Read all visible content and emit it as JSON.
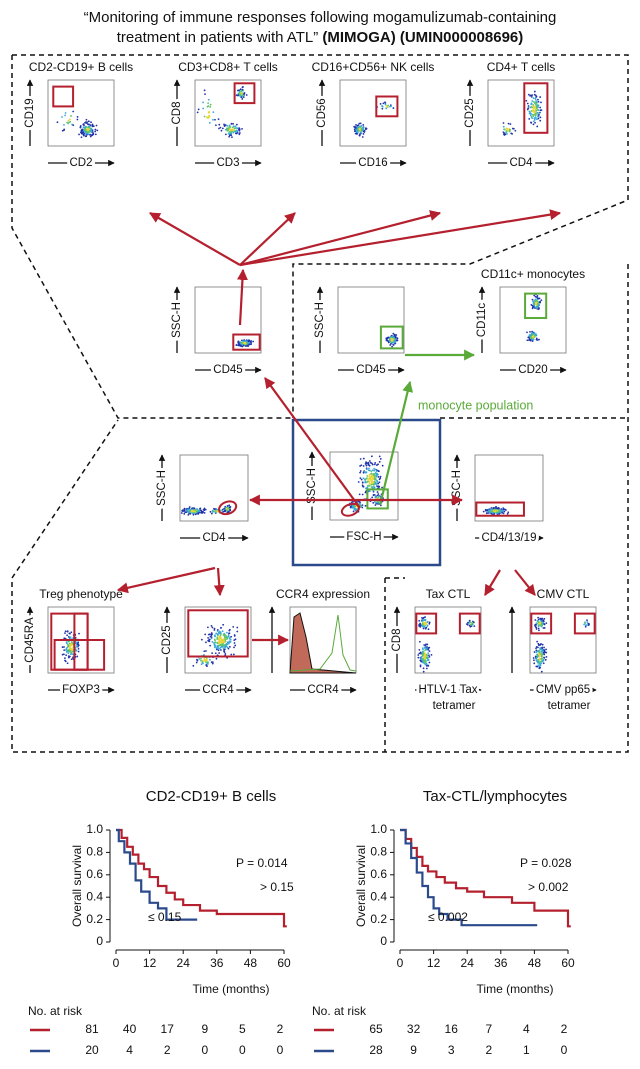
{
  "title": {
    "line1": "“Monitoring of immune responses following mogamulizumab-containing",
    "line2": "treatment in patients with ATL”",
    "line2_bold": "(MIMOGA) (UMIN000008696)"
  },
  "panels": [
    {
      "title": "CD2-CD19+ B cells",
      "x_label": "CD2",
      "y_label": "CD19"
    },
    {
      "title": "CD3+CD8+ T cells",
      "x_label": "CD3",
      "y_label": "CD8"
    },
    {
      "title": "CD16+CD56+ NK cells",
      "x_label": "CD16",
      "y_label": "CD56"
    },
    {
      "title": "CD4+ T cells",
      "x_label": "CD4",
      "y_label": "CD25"
    },
    {
      "x_label": "CD45",
      "y_label": "SSC-H"
    },
    {
      "x_label": "CD45",
      "y_label": "SSC-H"
    },
    {
      "title": "CD11c+ monocytes",
      "x_label": "CD20",
      "y_label": "CD11c"
    },
    {
      "x_label": "CD4",
      "y_label": "SSC-H"
    },
    {
      "x_label": "FSC-H",
      "y_label": "SSC-H"
    },
    {
      "x_label": "CD4/13/19",
      "y_label": "SSC-H"
    },
    {
      "title": "Treg phenotype",
      "x_label": "FOXP3",
      "y_label": "CD45RA"
    },
    {
      "x_label": "CCR4",
      "y_label": "CD25"
    },
    {
      "title": "CCR4 expression",
      "x_label": "CCR4"
    },
    {
      "title": "Tax CTL",
      "x_label": "HTLV-1 Tax",
      "x_label2": "tetramer",
      "y_label": "CD8"
    },
    {
      "title": "CMV CTL",
      "x_label": "CMV pp65",
      "x_label2": "tetramer"
    }
  ],
  "annotations": {
    "monocyte": "monocyte population"
  },
  "chart_data": [
    {
      "type": "line",
      "title": "CD2-CD19+ B cells",
      "x_label": "Time (months)",
      "y_label": "Overall survival",
      "annotation": "P = 0.014",
      "risk_label": "No. at risk",
      "xlim": [
        0,
        62
      ],
      "ylim": [
        0,
        1
      ],
      "xticks": [
        0,
        12,
        24,
        36,
        48,
        60
      ],
      "yticks": [
        0,
        0.2,
        0.4,
        0.6,
        0.8,
        {
          "value": 1,
          "label": "1.0"
        }
      ],
      "series": [
        {
          "name": "> 0.15",
          "color": "#b5202e",
          "x": [
            0,
            2,
            2,
            4,
            4,
            6,
            6,
            8,
            8,
            10,
            10,
            12,
            12,
            15,
            15,
            18,
            18,
            21,
            21,
            24,
            24,
            30,
            30,
            36,
            36,
            60,
            60,
            61
          ],
          "values": [
            1,
            1,
            0.93,
            0.93,
            0.85,
            0.85,
            0.78,
            0.78,
            0.7,
            0.7,
            0.65,
            0.65,
            0.58,
            0.58,
            0.5,
            0.5,
            0.44,
            0.44,
            0.38,
            0.38,
            0.33,
            0.33,
            0.28,
            0.28,
            0.25,
            0.25,
            0.14,
            0.14
          ],
          "at_risk": [
            81,
            40,
            17,
            9,
            5,
            2
          ]
        },
        {
          "name": "≤ 0.15",
          "color": "#2b4a8c",
          "x": [
            0,
            1,
            1,
            3,
            3,
            5,
            5,
            7,
            7,
            9,
            9,
            12,
            12,
            15,
            15,
            18,
            18,
            29
          ],
          "values": [
            1,
            1,
            0.9,
            0.9,
            0.8,
            0.8,
            0.7,
            0.7,
            0.55,
            0.55,
            0.45,
            0.45,
            0.35,
            0.35,
            0.3,
            0.3,
            0.2,
            0.2
          ],
          "at_risk": [
            20,
            4,
            2,
            0,
            0,
            0
          ]
        }
      ]
    },
    {
      "type": "line",
      "title": "Tax-CTL/lymphocytes",
      "x_label": "Time (months)",
      "y_label": "Overall survival",
      "annotation": "P = 0.028",
      "risk_label": "No. at risk",
      "xlim": [
        0,
        62
      ],
      "ylim": [
        0,
        1
      ],
      "xticks": [
        0,
        12,
        24,
        36,
        48,
        60
      ],
      "yticks": [
        0,
        0.2,
        0.4,
        0.6,
        0.8,
        {
          "value": 1,
          "label": "1.0"
        }
      ],
      "series": [
        {
          "name": "> 0.002",
          "color": "#b5202e",
          "x": [
            0,
            2,
            2,
            4,
            4,
            6,
            6,
            8,
            8,
            10,
            10,
            13,
            13,
            16,
            16,
            20,
            20,
            24,
            24,
            30,
            30,
            40,
            40,
            48,
            48,
            60,
            60,
            61
          ],
          "values": [
            1,
            1,
            0.92,
            0.92,
            0.84,
            0.84,
            0.76,
            0.76,
            0.68,
            0.68,
            0.63,
            0.63,
            0.58,
            0.58,
            0.53,
            0.53,
            0.48,
            0.48,
            0.45,
            0.45,
            0.4,
            0.4,
            0.35,
            0.35,
            0.28,
            0.28,
            0.14,
            0.14
          ],
          "at_risk": [
            65,
            32,
            16,
            7,
            4,
            2
          ]
        },
        {
          "name": "≤ 0.002",
          "color": "#2b4a8c",
          "x": [
            0,
            2,
            2,
            4,
            4,
            6,
            6,
            8,
            8,
            10,
            10,
            12,
            12,
            14,
            14,
            17,
            17,
            22,
            22,
            49
          ],
          "values": [
            1,
            1,
            0.88,
            0.88,
            0.75,
            0.75,
            0.62,
            0.62,
            0.5,
            0.5,
            0.4,
            0.4,
            0.3,
            0.3,
            0.25,
            0.25,
            0.2,
            0.2,
            0.15,
            0.15
          ],
          "at_risk": [
            28,
            9,
            3,
            2,
            1,
            0
          ]
        }
      ]
    }
  ]
}
